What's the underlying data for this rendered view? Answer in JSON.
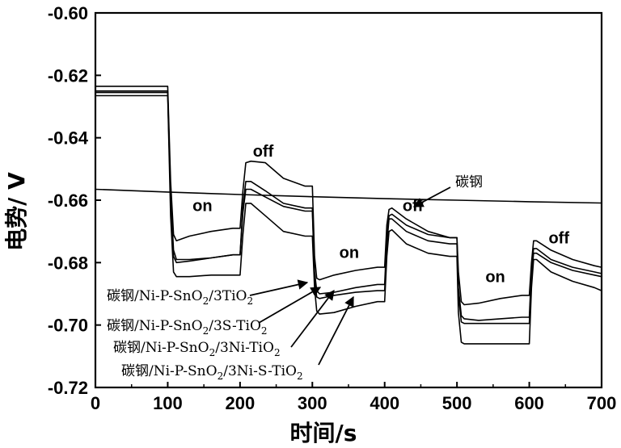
{
  "chart_data": {
    "type": "line",
    "title": "",
    "xlabel": "时间/s",
    "ylabel": "电势/ V",
    "xlim": [
      0,
      700
    ],
    "ylim": [
      -0.72,
      -0.6
    ],
    "xticks": [
      "0",
      "100",
      "200",
      "300",
      "400",
      "500",
      "600",
      "700"
    ],
    "yticks": [
      "-0.60",
      "-0.62",
      "-0.64",
      "-0.66",
      "-0.68",
      "-0.70",
      "-0.72"
    ],
    "grid": false,
    "annotations": [
      {
        "text": "on",
        "x": 148,
        "y": -0.6635
      },
      {
        "text": "off",
        "x": 232,
        "y": -0.646
      },
      {
        "text": "on",
        "x": 351,
        "y": -0.6785
      },
      {
        "text": "off",
        "x": 439,
        "y": -0.6635
      },
      {
        "text": "on",
        "x": 553,
        "y": -0.6862
      },
      {
        "text": "off",
        "x": 641,
        "y": -0.6738
      }
    ],
    "series": [
      {
        "name": "碳钢",
        "label_parts": [
          "碳钢"
        ],
        "x": [
          0,
          100,
          200,
          300,
          400,
          500,
          600,
          700
        ],
        "y": [
          -0.6565,
          -0.6574,
          -0.6582,
          -0.6589,
          -0.6595,
          -0.66,
          -0.6605,
          -0.6609
        ]
      },
      {
        "name": "碳钢/Ni-P-SnO2/3TiO2",
        "label_parts": [
          "碳钢/Ni-P-SnO",
          "2",
          "/3TiO",
          "2"
        ],
        "x": [
          0,
          100,
          104,
          108,
          112,
          130,
          160,
          190,
          200,
          204,
          208,
          215,
          235,
          260,
          290,
          300,
          303,
          306,
          310,
          330,
          360,
          390,
          400,
          403,
          406,
          410,
          430,
          460,
          490,
          500,
          502,
          506,
          510,
          530,
          560,
          590,
          600,
          603,
          606,
          610,
          630,
          660,
          690,
          700
        ],
        "y": [
          -0.6235,
          -0.6235,
          -0.654,
          -0.671,
          -0.673,
          -0.6715,
          -0.67,
          -0.669,
          -0.669,
          -0.657,
          -0.648,
          -0.6475,
          -0.648,
          -0.653,
          -0.6555,
          -0.6555,
          -0.678,
          -0.685,
          -0.6855,
          -0.684,
          -0.6825,
          -0.6815,
          -0.6815,
          -0.668,
          -0.663,
          -0.6625,
          -0.666,
          -0.67,
          -0.672,
          -0.672,
          -0.683,
          -0.6925,
          -0.6935,
          -0.693,
          -0.6915,
          -0.6905,
          -0.6905,
          -0.68,
          -0.673,
          -0.673,
          -0.676,
          -0.679,
          -0.681,
          -0.6815
        ]
      },
      {
        "name": "碳钢/Ni-P-SnO2/3S-TiO2",
        "label_parts": [
          "碳钢/Ni-P-SnO",
          "2",
          "/3S-TiO",
          "2"
        ],
        "x": [
          0,
          100,
          104,
          108,
          112,
          130,
          160,
          190,
          200,
          204,
          208,
          215,
          235,
          260,
          290,
          300,
          303,
          306,
          310,
          330,
          360,
          390,
          400,
          403,
          406,
          410,
          430,
          460,
          490,
          500,
          502,
          506,
          510,
          530,
          560,
          590,
          600,
          603,
          606,
          610,
          630,
          660,
          690,
          700
        ],
        "y": [
          -0.625,
          -0.625,
          -0.658,
          -0.676,
          -0.679,
          -0.679,
          -0.6785,
          -0.6775,
          -0.6775,
          -0.662,
          -0.654,
          -0.654,
          -0.657,
          -0.661,
          -0.6625,
          -0.6625,
          -0.683,
          -0.689,
          -0.69,
          -0.6895,
          -0.688,
          -0.687,
          -0.687,
          -0.672,
          -0.665,
          -0.6645,
          -0.668,
          -0.671,
          -0.672,
          -0.672,
          -0.688,
          -0.697,
          -0.698,
          -0.6985,
          -0.698,
          -0.6975,
          -0.6975,
          -0.682,
          -0.6755,
          -0.6755,
          -0.679,
          -0.6815,
          -0.683,
          -0.6835
        ]
      },
      {
        "name": "碳钢/Ni-P-SnO2/3Ni-TiO2",
        "label_parts": [
          "碳钢/Ni-P-SnO",
          "2",
          "/3Ni-TiO",
          "2"
        ],
        "x": [
          0,
          100,
          104,
          108,
          112,
          130,
          160,
          190,
          200,
          204,
          208,
          215,
          235,
          260,
          290,
          300,
          303,
          306,
          310,
          330,
          360,
          390,
          400,
          403,
          406,
          410,
          430,
          460,
          490,
          500,
          502,
          506,
          510,
          530,
          560,
          590,
          600,
          603,
          606,
          610,
          630,
          660,
          690,
          700
        ],
        "y": [
          -0.6255,
          -0.6255,
          -0.66,
          -0.678,
          -0.68,
          -0.6795,
          -0.6785,
          -0.6775,
          -0.6775,
          -0.664,
          -0.6565,
          -0.6565,
          -0.659,
          -0.662,
          -0.6635,
          -0.6635,
          -0.685,
          -0.691,
          -0.6915,
          -0.6905,
          -0.6895,
          -0.689,
          -0.689,
          -0.674,
          -0.666,
          -0.666,
          -0.67,
          -0.673,
          -0.674,
          -0.674,
          -0.69,
          -0.699,
          -0.6995,
          -0.6995,
          -0.6995,
          -0.6995,
          -0.6995,
          -0.684,
          -0.677,
          -0.677,
          -0.68,
          -0.6825,
          -0.684,
          -0.6845
        ]
      },
      {
        "name": "碳钢/Ni-P-SnO2/3Ni-S-TiO2",
        "label_parts": [
          "碳钢/Ni-P-SnO",
          "2",
          "/3Ni-S-TiO",
          "2"
        ],
        "x": [
          0,
          100,
          104,
          108,
          112,
          130,
          160,
          190,
          200,
          204,
          208,
          215,
          235,
          260,
          290,
          300,
          303,
          306,
          310,
          330,
          360,
          390,
          400,
          403,
          406,
          410,
          430,
          460,
          490,
          500,
          502,
          506,
          510,
          530,
          560,
          590,
          600,
          603,
          606,
          610,
          630,
          660,
          690,
          700
        ],
        "y": [
          -0.6265,
          -0.6265,
          -0.665,
          -0.683,
          -0.6845,
          -0.6845,
          -0.684,
          -0.684,
          -0.684,
          -0.671,
          -0.661,
          -0.661,
          -0.665,
          -0.67,
          -0.6715,
          -0.6715,
          -0.688,
          -0.6955,
          -0.6965,
          -0.696,
          -0.694,
          -0.6925,
          -0.6925,
          -0.678,
          -0.67,
          -0.6695,
          -0.674,
          -0.677,
          -0.678,
          -0.678,
          -0.696,
          -0.7055,
          -0.706,
          -0.706,
          -0.706,
          -0.706,
          -0.706,
          -0.688,
          -0.679,
          -0.679,
          -0.683,
          -0.686,
          -0.688,
          -0.689
        ]
      }
    ]
  }
}
